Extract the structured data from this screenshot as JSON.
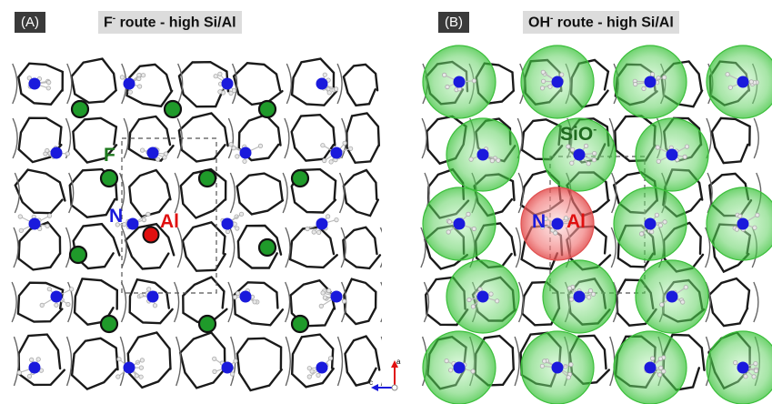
{
  "panel_a": {
    "tag": "(A)",
    "title_ion": "F",
    "title_charge": "-",
    "title_rest": " route - high Si/Al",
    "label_f": "F",
    "label_n": "N",
    "label_al": "Al"
  },
  "panel_b": {
    "tag": "(B)",
    "title_ion": "OH",
    "title_charge": "-",
    "title_rest": " route - high Si/Al",
    "label_sio_base": "SiO",
    "label_sio_charge": "-",
    "label_n": "N",
    "label_al": "Al"
  },
  "axes": {
    "a_label": "a",
    "c_label": "c"
  },
  "colors": {
    "framework": "#1a1a1a",
    "nitrogen": "#1a1adc",
    "fluoride": "#1f9a2a",
    "aluminum": "#e01010",
    "sio_halo": "#5fd05f",
    "al_halo": "#f07070",
    "label_f": "#1f7a1f",
    "label_n": "#1a1adc",
    "label_al": "#e01010",
    "label_sio": "#1f6a1f"
  }
}
